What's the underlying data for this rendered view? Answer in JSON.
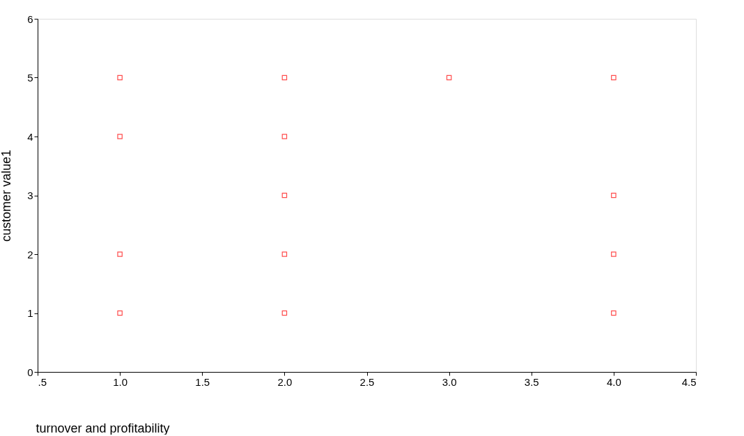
{
  "chart_data": {
    "type": "scatter",
    "xlabel": "turnover and profitability",
    "ylabel": "customer value1",
    "x": [
      1,
      1,
      1,
      1,
      2,
      2,
      2,
      2,
      2,
      3,
      4,
      4,
      4,
      4
    ],
    "series": [
      {
        "color": "#ff0000",
        "values": [
          5,
          4,
          2,
          1,
          5,
          4,
          3,
          2,
          1,
          5,
          5,
          3,
          2,
          1
        ]
      }
    ],
    "xlim": [
      0.5,
      4.5
    ],
    "xticks": [
      {
        "value": 0.5,
        "label": ".5"
      },
      {
        "value": 1,
        "label": "1.0"
      },
      {
        "value": 1.5,
        "label": "1.5"
      },
      {
        "value": 2,
        "label": "2.0"
      },
      {
        "value": 2.5,
        "label": "2.5"
      },
      {
        "value": 3,
        "label": "3.0"
      },
      {
        "value": 3.5,
        "label": "3.5"
      },
      {
        "value": 4,
        "label": "4.0"
      },
      {
        "value": 4.5,
        "label": "4.5"
      }
    ],
    "ylim": [
      0,
      6
    ],
    "yticks": [
      0,
      1,
      2,
      3,
      4,
      5,
      6
    ],
    "grid": false,
    "legend": false,
    "marker": "square"
  }
}
